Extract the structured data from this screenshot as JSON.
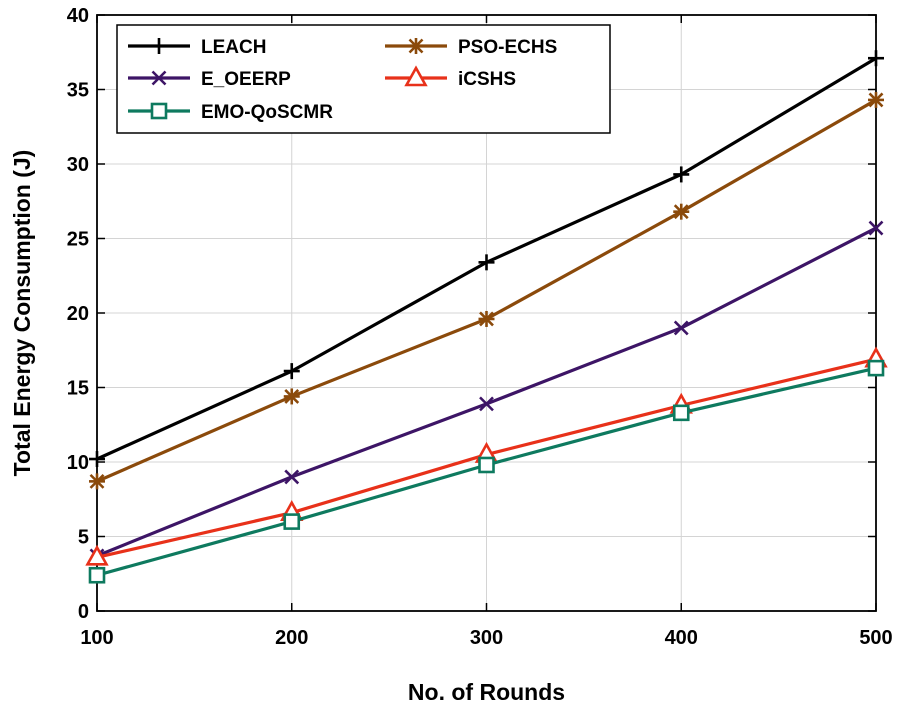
{
  "chart_data": {
    "type": "line",
    "title": "",
    "xlabel": "No. of Rounds",
    "ylabel": "Total Energy Consumption (J)",
    "x": [
      100,
      200,
      300,
      400,
      500
    ],
    "xlim": [
      100,
      500
    ],
    "ylim": [
      0,
      40
    ],
    "xticks": [
      "100",
      "200",
      "300",
      "400",
      "500"
    ],
    "yticks": [
      "0",
      "5",
      "10",
      "15",
      "20",
      "25",
      "30",
      "35",
      "40"
    ],
    "grid": true,
    "legend_position": "top-left",
    "series": [
      {
        "name": "LEACH",
        "marker": "plus",
        "color": "#000000",
        "values": [
          10.2,
          16.1,
          23.4,
          29.3,
          37.1
        ]
      },
      {
        "name": "PSO-ECHS",
        "marker": "asterisk",
        "color": "#8B4A0B",
        "values": [
          8.7,
          14.4,
          19.6,
          26.8,
          34.3
        ]
      },
      {
        "name": "E_OEERP",
        "marker": "x",
        "color": "#3D1566",
        "values": [
          3.7,
          9.0,
          13.9,
          19.0,
          25.7
        ]
      },
      {
        "name": "iCSHS",
        "marker": "triangle",
        "color": "#E8311A",
        "values": [
          3.6,
          6.6,
          10.5,
          13.8,
          16.9
        ]
      },
      {
        "name": "EMO-QoSCMR",
        "marker": "square",
        "color": "#0E7A5F",
        "values": [
          2.4,
          6.0,
          9.8,
          13.3,
          16.3
        ]
      }
    ]
  }
}
